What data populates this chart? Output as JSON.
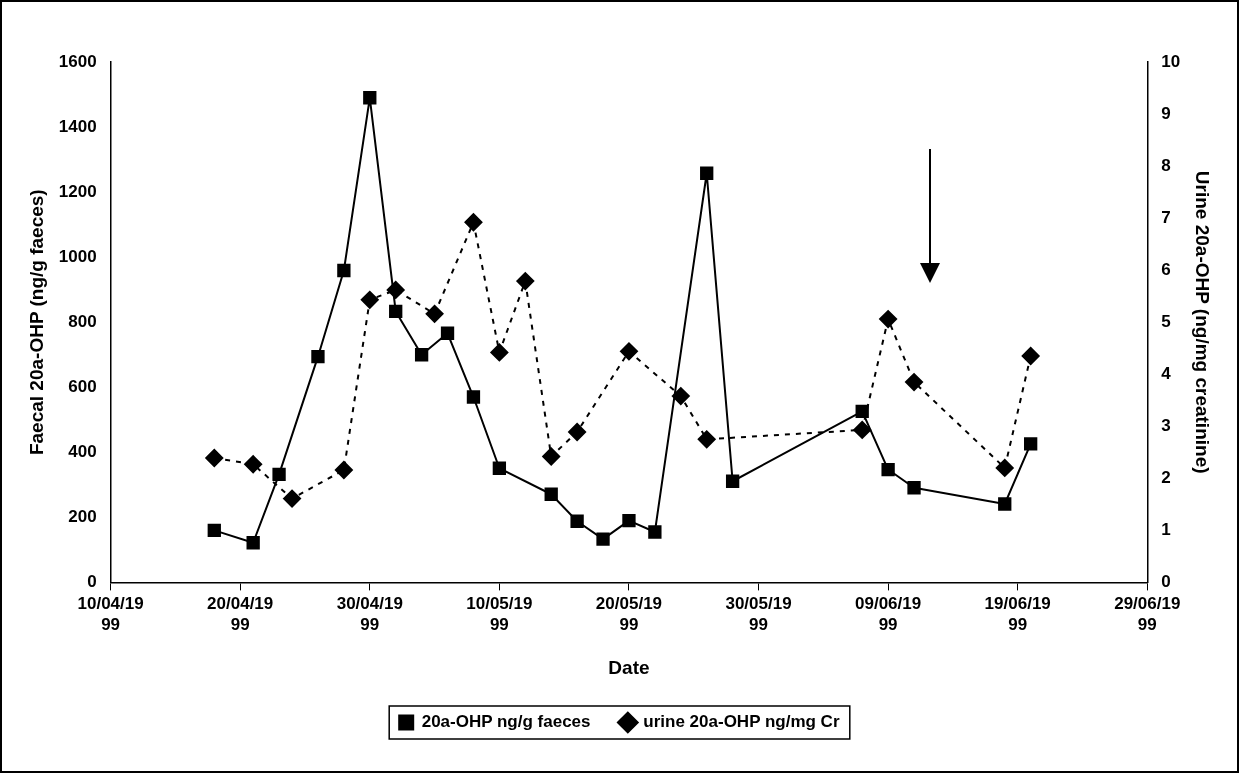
{
  "chart_data": {
    "type": "line",
    "xlabel": "Date",
    "ylabel": "Faecal 20a-OHP (ng/g faeces)",
    "y2label": "Urine 20a-OHP (ng/mg creatinine)",
    "xlim": [
      "1999-04-10",
      "1999-06-29"
    ],
    "xticks": [
      {
        "value": "1999-04-10",
        "label": "10/04/1999"
      },
      {
        "value": "1999-04-20",
        "label": "20/04/1999"
      },
      {
        "value": "1999-04-30",
        "label": "30/04/1999"
      },
      {
        "value": "1999-05-10",
        "label": "10/05/1999"
      },
      {
        "value": "1999-05-20",
        "label": "20/05/1999"
      },
      {
        "value": "1999-05-30",
        "label": "30/05/1999"
      },
      {
        "value": "1999-06-09",
        "label": "09/06/1999"
      },
      {
        "value": "1999-06-19",
        "label": "19/06/1999"
      },
      {
        "value": "1999-06-29",
        "label": "29/06/1999"
      }
    ],
    "ylim": [
      0,
      1600
    ],
    "yticks": [
      0,
      200,
      400,
      600,
      800,
      1000,
      1200,
      1400,
      1600
    ],
    "y2lim": [
      0,
      10
    ],
    "y2ticks": [
      0,
      1,
      2,
      3,
      4,
      5,
      6,
      7,
      8,
      9,
      10
    ],
    "grid": false,
    "legend": "bottom",
    "series": [
      {
        "name": "20a-OHP ng/g faeces",
        "color": "#000000",
        "marker": "square",
        "line_style": "solid",
        "x": [
          "1999-04-18",
          "1999-04-21",
          "1999-04-23",
          "1999-04-26",
          "1999-04-28",
          "1999-04-30",
          "1999-05-02",
          "1999-05-04",
          "1999-05-06",
          "1999-05-08",
          "1999-05-10",
          "1999-05-14",
          "1999-05-16",
          "1999-05-18",
          "1999-05-20",
          "1999-05-22",
          "1999-05-26",
          "1999-05-28",
          "1999-06-07",
          "1999-06-09",
          "1999-06-11",
          "1999-06-18",
          "1999-06-20"
        ],
        "values": [
          160,
          122,
          332,
          694,
          959,
          1490,
          833,
          700,
          766,
          570,
          351,
          271,
          188,
          133,
          190,
          155,
          1258,
          311,
          526,
          347,
          291,
          241,
          426
        ]
      },
      {
        "name": "urine 20a-OHP ng/mg Cr",
        "color": "#000000",
        "marker": "diamond",
        "line_style": "dotted",
        "axis": "y2",
        "x": [
          "1999-04-18",
          "1999-04-21",
          "1999-04-24",
          "1999-04-28",
          "1999-04-30",
          "1999-05-02",
          "1999-05-05",
          "1999-05-08",
          "1999-05-10",
          "1999-05-12",
          "1999-05-14",
          "1999-05-16",
          "1999-05-20",
          "1999-05-24",
          "1999-05-26",
          "1999-06-07",
          "1999-06-09",
          "1999-06-11",
          "1999-06-18",
          "1999-06-20"
        ],
        "values": [
          2.39,
          2.27,
          1.61,
          2.16,
          5.43,
          5.62,
          5.16,
          6.92,
          4.42,
          5.79,
          2.42,
          2.89,
          4.44,
          3.58,
          2.75,
          2.93,
          5.06,
          3.85,
          2.2,
          4.35
        ]
      }
    ]
  }
}
